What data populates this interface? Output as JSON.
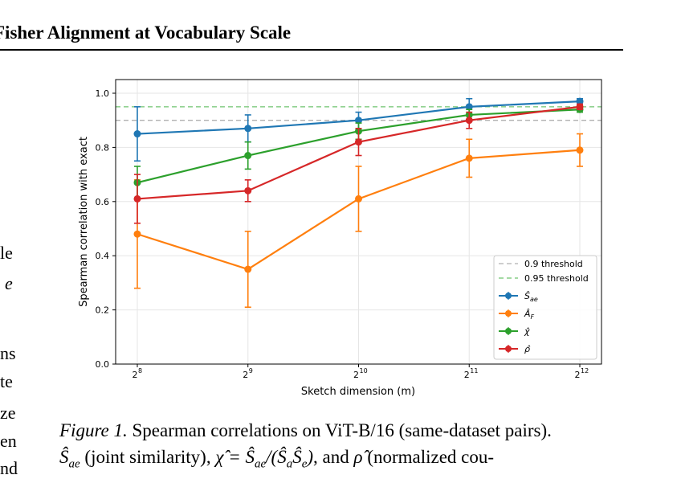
{
  "page": {
    "header": "Fisher Alignment at Vocabulary Scale",
    "left_fragments": [
      "le",
      "e",
      "ns",
      "te",
      "ze",
      "en",
      "nd"
    ]
  },
  "caption": {
    "label": "Figure 1.",
    "line1": "Spearman correlations on ViT-B/16 (same-dataset pairs).",
    "line2_a": "(joint similarity),",
    "line2_b": ", and",
    "line2_c": "(normalized cou-",
    "math_s_ae": "Ŝ",
    "math_s_ae_sub": "ae",
    "math_chi_eq": "χ̂ = Ŝ",
    "math_chi_sub": "ae",
    "math_chi_rest": "/(Ŝ",
    "math_chi_sub2": "a",
    "math_chi_s": "Ŝ",
    "math_chi_sub3": "e",
    "math_chi_close": ")",
    "math_rho": "ρ̂"
  },
  "chart_data": {
    "type": "line",
    "xlabel": "Sketch dimension (m)",
    "ylabel": "Spearman correlation with exact",
    "x_tick_labels": [
      {
        "base": "2",
        "exp": "8"
      },
      {
        "base": "2",
        "exp": "9"
      },
      {
        "base": "2",
        "exp": "10"
      },
      {
        "base": "2",
        "exp": "11"
      },
      {
        "base": "2",
        "exp": "12"
      }
    ],
    "x": [
      256,
      512,
      1024,
      2048,
      4096
    ],
    "x_scale": "log2",
    "ylim": [
      0.0,
      1.0
    ],
    "y_ticks": [
      "0.0",
      "0.2",
      "0.4",
      "0.6",
      "0.8",
      "1.0"
    ],
    "grid": true,
    "legend_position": "lower-right",
    "thresholds": [
      {
        "label": "0.9 threshold",
        "value": 0.9,
        "color": "#b0b0b0"
      },
      {
        "label": "0.95 threshold",
        "value": 0.95,
        "color": "#6fc46f"
      }
    ],
    "series": [
      {
        "name": "Ŝ",
        "name_sub": "ae",
        "color": "#1f77b4",
        "values": [
          0.85,
          0.87,
          0.9,
          0.95,
          0.97
        ],
        "errors": [
          0.1,
          0.05,
          0.03,
          0.03,
          0.01
        ]
      },
      {
        "name": "Â",
        "name_sub": "F",
        "color": "#ff7f0e",
        "values": [
          0.48,
          0.35,
          0.61,
          0.76,
          0.79
        ],
        "errors": [
          0.2,
          0.14,
          0.12,
          0.07,
          0.06
        ]
      },
      {
        "name": "χ̂",
        "name_sub": "",
        "color": "#2ca02c",
        "values": [
          0.67,
          0.77,
          0.86,
          0.92,
          0.94
        ],
        "errors": [
          0.06,
          0.05,
          0.03,
          0.02,
          0.01
        ]
      },
      {
        "name": "ρ̂",
        "name_sub": "",
        "color": "#d62728",
        "values": [
          0.61,
          0.64,
          0.82,
          0.9,
          0.95
        ],
        "errors": [
          0.09,
          0.04,
          0.05,
          0.03,
          0.01
        ]
      }
    ]
  }
}
